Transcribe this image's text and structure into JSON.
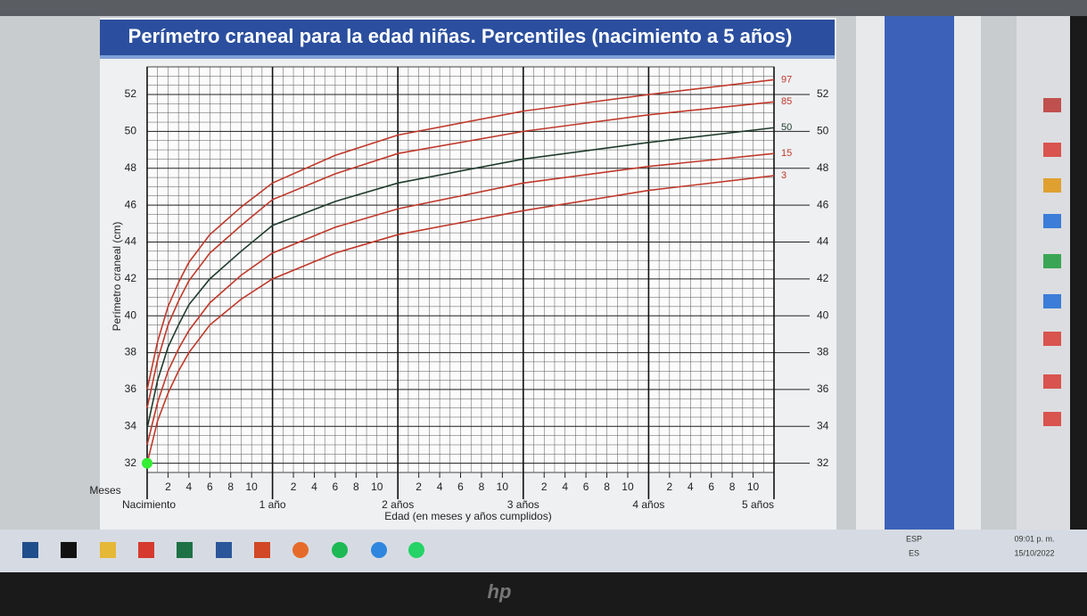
{
  "chart_data": {
    "type": "line",
    "title": "Perímetro craneal para la edad niñas. Percentiles (nacimiento a 5 años)",
    "ylabel": "Perímetro craneal (cm)",
    "xlabel": "Edad (en meses y años cumplidos)",
    "xunit_label": "Meses",
    "x": [
      0,
      1,
      2,
      3,
      4,
      6,
      9,
      12,
      18,
      24,
      36,
      48,
      60
    ],
    "series": [
      {
        "name": "97",
        "color": "#c0392b",
        "values": [
          36.0,
          38.6,
          40.5,
          41.8,
          42.9,
          44.4,
          45.9,
          47.2,
          48.7,
          49.8,
          51.1,
          52.0,
          52.8
        ]
      },
      {
        "name": "85",
        "color": "#c0392b",
        "values": [
          35.0,
          37.6,
          39.5,
          40.8,
          41.9,
          43.4,
          44.9,
          46.3,
          47.7,
          48.8,
          50.0,
          50.9,
          51.6
        ]
      },
      {
        "name": "50",
        "color": "#1f3b2c",
        "values": [
          33.9,
          36.5,
          38.3,
          39.5,
          40.6,
          42.0,
          43.5,
          44.9,
          46.2,
          47.2,
          48.5,
          49.4,
          50.2
        ]
      },
      {
        "name": "15",
        "color": "#c0392b",
        "values": [
          33.0,
          35.3,
          37.0,
          38.2,
          39.2,
          40.7,
          42.2,
          43.4,
          44.8,
          45.8,
          47.2,
          48.1,
          48.8
        ]
      },
      {
        "name": "3",
        "color": "#c0392b",
        "values": [
          32.0,
          34.3,
          35.8,
          37.0,
          38.0,
          39.5,
          40.9,
          42.0,
          43.4,
          44.4,
          45.7,
          46.8,
          47.6
        ]
      }
    ],
    "xlim": [
      0,
      60
    ],
    "ylim": [
      31.5,
      53.5
    ],
    "yticks": [
      32,
      34,
      36,
      38,
      40,
      42,
      44,
      46,
      48,
      50,
      52
    ],
    "xticks": [
      2,
      4,
      6,
      8,
      10,
      {
        "value": 14,
        "label": "2"
      },
      {
        "value": 16,
        "label": "4"
      },
      {
        "value": 18,
        "label": "6"
      },
      {
        "value": 20,
        "label": "8"
      },
      {
        "value": 22,
        "label": "10"
      },
      {
        "value": 26,
        "label": "2"
      },
      {
        "value": 28,
        "label": "4"
      },
      {
        "value": 30,
        "label": "6"
      },
      {
        "value": 32,
        "label": "8"
      },
      {
        "value": 34,
        "label": "10"
      },
      {
        "value": 38,
        "label": "2"
      },
      {
        "value": 40,
        "label": "4"
      },
      {
        "value": 42,
        "label": "6"
      },
      {
        "value": 44,
        "label": "8"
      },
      {
        "value": 46,
        "label": "10"
      },
      {
        "value": 50,
        "label": "2"
      },
      {
        "value": 52,
        "label": "4"
      },
      {
        "value": 54,
        "label": "6"
      },
      {
        "value": 56,
        "label": "8"
      },
      {
        "value": 58,
        "label": "10"
      }
    ],
    "year_ticks": [
      {
        "value": 0,
        "label": "Nacimiento"
      },
      {
        "value": 12,
        "label": "1 año"
      },
      {
        "value": 24,
        "label": "2 años"
      },
      {
        "value": 36,
        "label": "3 años"
      },
      {
        "value": 48,
        "label": "4 años"
      },
      {
        "value": 60,
        "label": "5 años"
      }
    ],
    "minor_grid": {
      "x": 1,
      "y": 0.5
    },
    "marker": {
      "x": 0,
      "y": 32,
      "color": "#33ee33"
    }
  },
  "taskbar": {
    "language": "ESP",
    "layout": "ES",
    "time": "09:01 p. m.",
    "date": "15/10/2022"
  }
}
